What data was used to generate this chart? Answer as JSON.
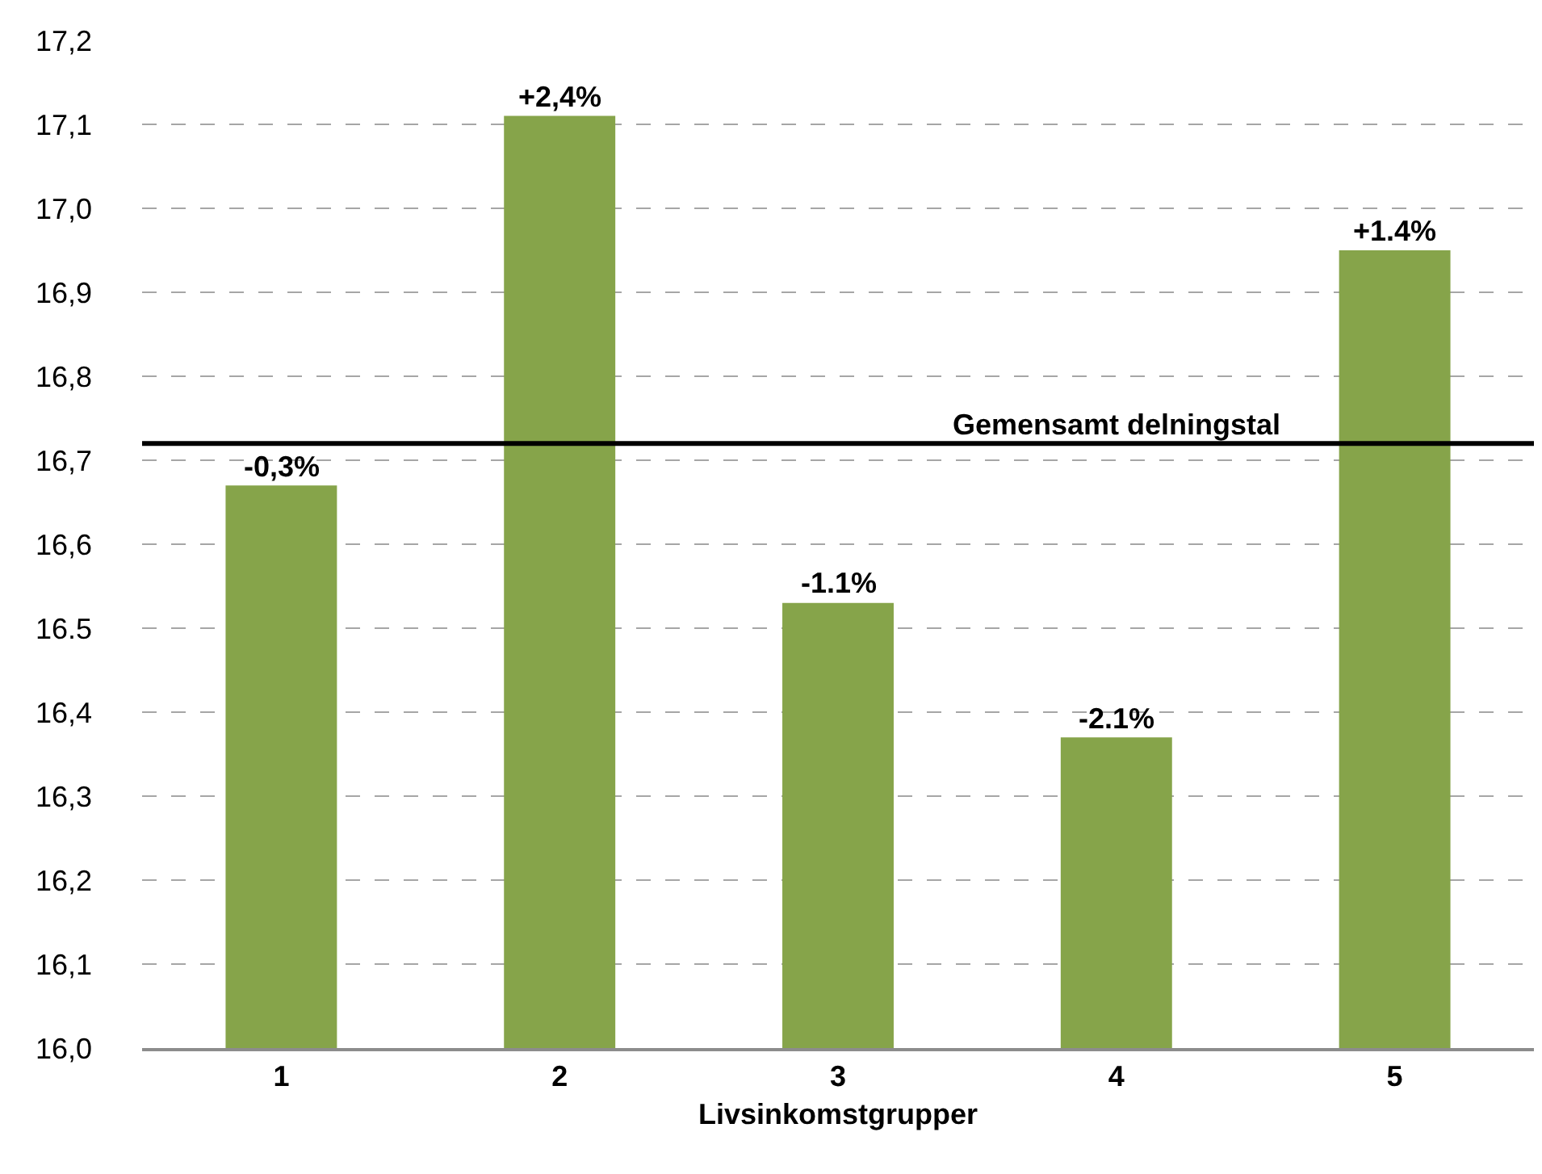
{
  "chart_data": {
    "type": "bar",
    "xlabel": "Livsinkomstgrupper",
    "categories": [
      "1",
      "2",
      "3",
      "4",
      "5"
    ],
    "values": [
      16.67,
      17.11,
      16.53,
      16.37,
      16.95
    ],
    "annotations": [
      {
        "text": "-0,3%",
        "x": "1",
        "y": 16.67
      },
      {
        "text": "+2,4%",
        "x": "2",
        "y": 17.11
      },
      {
        "text": "-1.1%",
        "x": "3",
        "y": 16.53
      },
      {
        "text": "-2.1%",
        "x": "4",
        "y": 16.37
      },
      {
        "text": "+1.4%",
        "x": "5",
        "y": 16.95
      }
    ],
    "color": "#86a44a",
    "ylim": [
      16.0,
      17.2
    ],
    "yticks": [
      {
        "value": 16.0,
        "label": "16,0"
      },
      {
        "value": 16.1,
        "label": "16,1"
      },
      {
        "value": 16.2,
        "label": "16,2"
      },
      {
        "value": 16.3,
        "label": "16,3"
      },
      {
        "value": 16.4,
        "label": "16,4"
      },
      {
        "value": 16.5,
        "label": "16.5"
      },
      {
        "value": 16.6,
        "label": "16,6"
      },
      {
        "value": 16.7,
        "label": "16,7"
      },
      {
        "value": 16.8,
        "label": "16,8"
      },
      {
        "value": 16.9,
        "label": "16,9"
      },
      {
        "value": 17.0,
        "label": "17,0"
      },
      {
        "value": 17.1,
        "label": "17,1"
      },
      {
        "value": 17.2,
        "label": "17,2"
      }
    ],
    "ref_lines": [
      {
        "axis": "y",
        "value": 16.72,
        "label": "Gemensamt delningstal",
        "color": "#000000",
        "line_style": "solid"
      }
    ],
    "grid": "y",
    "legend": false
  }
}
